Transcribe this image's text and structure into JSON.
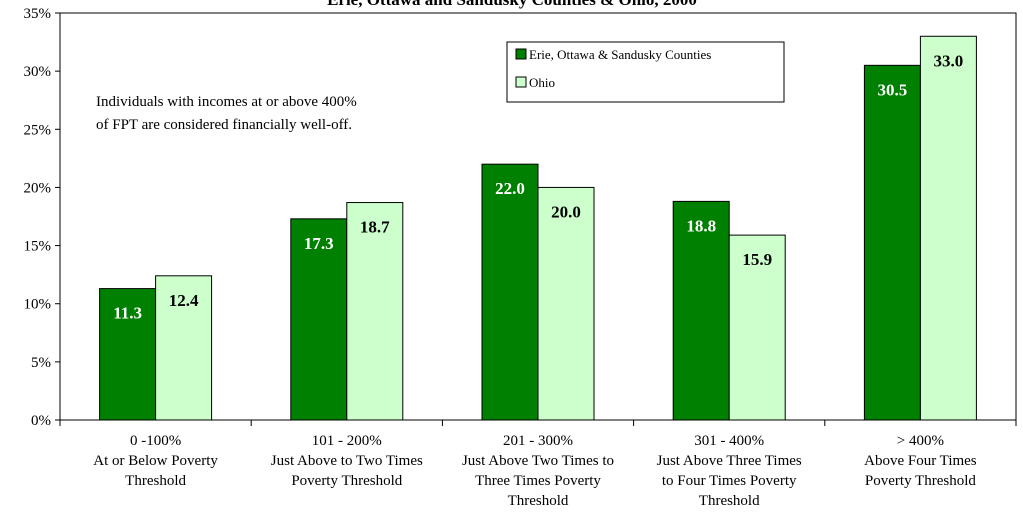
{
  "chart_data": {
    "type": "bar",
    "title": "Erie, Ottawa and Sandusky Counties & Ohio, 2000",
    "ylim": [
      0,
      35
    ],
    "yticks": [
      "0%",
      "5%",
      "10%",
      "15%",
      "20%",
      "25%",
      "30%",
      "35%"
    ],
    "ytick_values": [
      0,
      5,
      10,
      15,
      20,
      25,
      30,
      35
    ],
    "categories": [
      [
        "0 -100%",
        "At or Below Poverty",
        "Threshold"
      ],
      [
        "101 - 200%",
        "Just Above to Two Times",
        "Poverty Threshold"
      ],
      [
        "201 - 300%",
        "Just Above Two Times to",
        "Three Times Poverty",
        "Threshold"
      ],
      [
        "301 - 400%",
        "Just Above Three Times",
        "to Four Times Poverty",
        "Threshold"
      ],
      [
        "> 400%",
        "Above Four Times",
        "Poverty Threshold"
      ]
    ],
    "series": [
      {
        "name": "Erie, Ottawa & Sandusky Counties",
        "color": "#008000",
        "label_color": "#ffffff",
        "values": [
          11.3,
          17.3,
          22.0,
          18.8,
          30.5
        ],
        "labels": [
          "11.3",
          "17.3",
          "22.0",
          "18.8",
          "30.5"
        ]
      },
      {
        "name": "Ohio",
        "color": "#ccffcc",
        "label_color": "#000000",
        "values": [
          12.4,
          18.7,
          20.0,
          15.9,
          33.0
        ],
        "labels": [
          "12.4",
          "18.7",
          "20.0",
          "15.9",
          "33.0"
        ]
      }
    ],
    "annotation": [
      "Individuals with incomes at or above 400%",
      "of FPT are considered financially well-off."
    ],
    "grid": false,
    "legend_position": "top-right"
  }
}
